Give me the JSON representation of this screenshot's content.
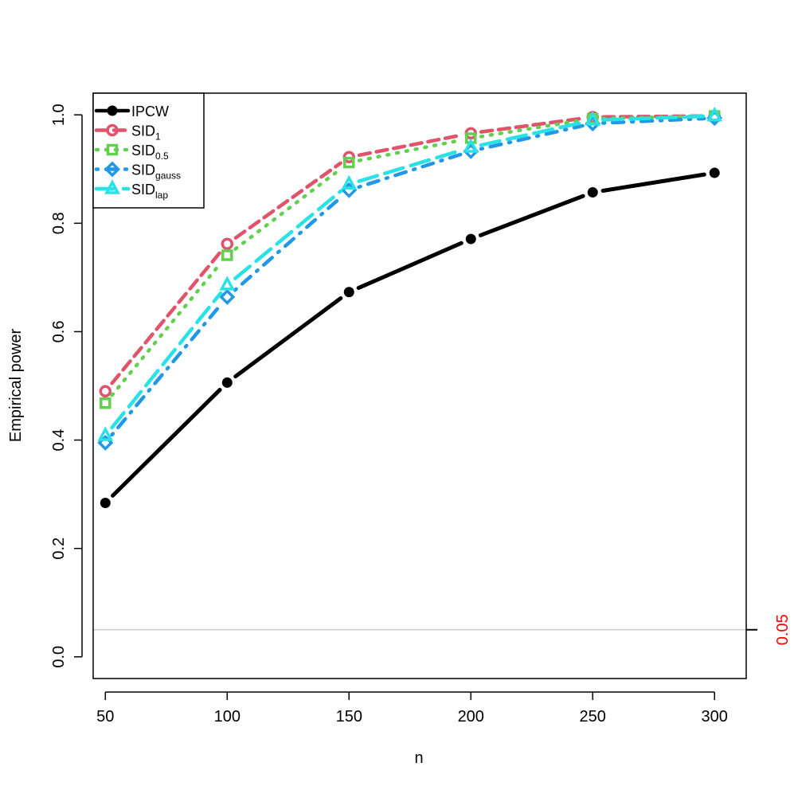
{
  "chart_data": {
    "type": "line",
    "xlabel": "n",
    "ylabel": "Empirical power",
    "x": [
      50,
      100,
      150,
      200,
      250,
      300
    ],
    "xlim": [
      45,
      313
    ],
    "ylim": [
      -0.04,
      1.04
    ],
    "x_ticks": [
      "50",
      "100",
      "150",
      "200",
      "250",
      "300"
    ],
    "y_ticks": [
      "0.0",
      "0.2",
      "0.4",
      "0.6",
      "0.8",
      "1.0"
    ],
    "reference_line": {
      "value": 0.05,
      "label": "0.05",
      "color": "#cccccc",
      "label_color": "#ff0000"
    },
    "legend_position": "top-left",
    "series": [
      {
        "key": "ipcw",
        "label_main": "IPCW",
        "label_sub": "",
        "color": "#000000",
        "marker": "dot",
        "dash": "none",
        "values": [
          0.284,
          0.506,
          0.673,
          0.771,
          0.857,
          0.893
        ]
      },
      {
        "key": "sid1",
        "label_main": "SID",
        "label_sub": "1",
        "color": "#df536b",
        "marker": "circle",
        "dash": "dashed",
        "values": [
          0.49,
          0.762,
          0.922,
          0.966,
          0.996,
          0.998
        ]
      },
      {
        "key": "sid05",
        "label_main": "SID",
        "label_sub": "0.5",
        "color": "#61d04f",
        "marker": "square",
        "dash": "dotted",
        "values": [
          0.468,
          0.741,
          0.912,
          0.957,
          0.993,
          0.998
        ]
      },
      {
        "key": "sidgauss",
        "label_main": "SID",
        "label_sub": "gauss",
        "color": "#2297e6",
        "marker": "diamond",
        "dash": "dotdash",
        "values": [
          0.395,
          0.664,
          0.861,
          0.933,
          0.984,
          0.994
        ]
      },
      {
        "key": "sidlap",
        "label_main": "SID",
        "label_sub": "lap",
        "color": "#28e2e5",
        "marker": "triangle",
        "dash": "longdash",
        "values": [
          0.408,
          0.686,
          0.872,
          0.94,
          0.99,
          0.998
        ]
      }
    ]
  }
}
